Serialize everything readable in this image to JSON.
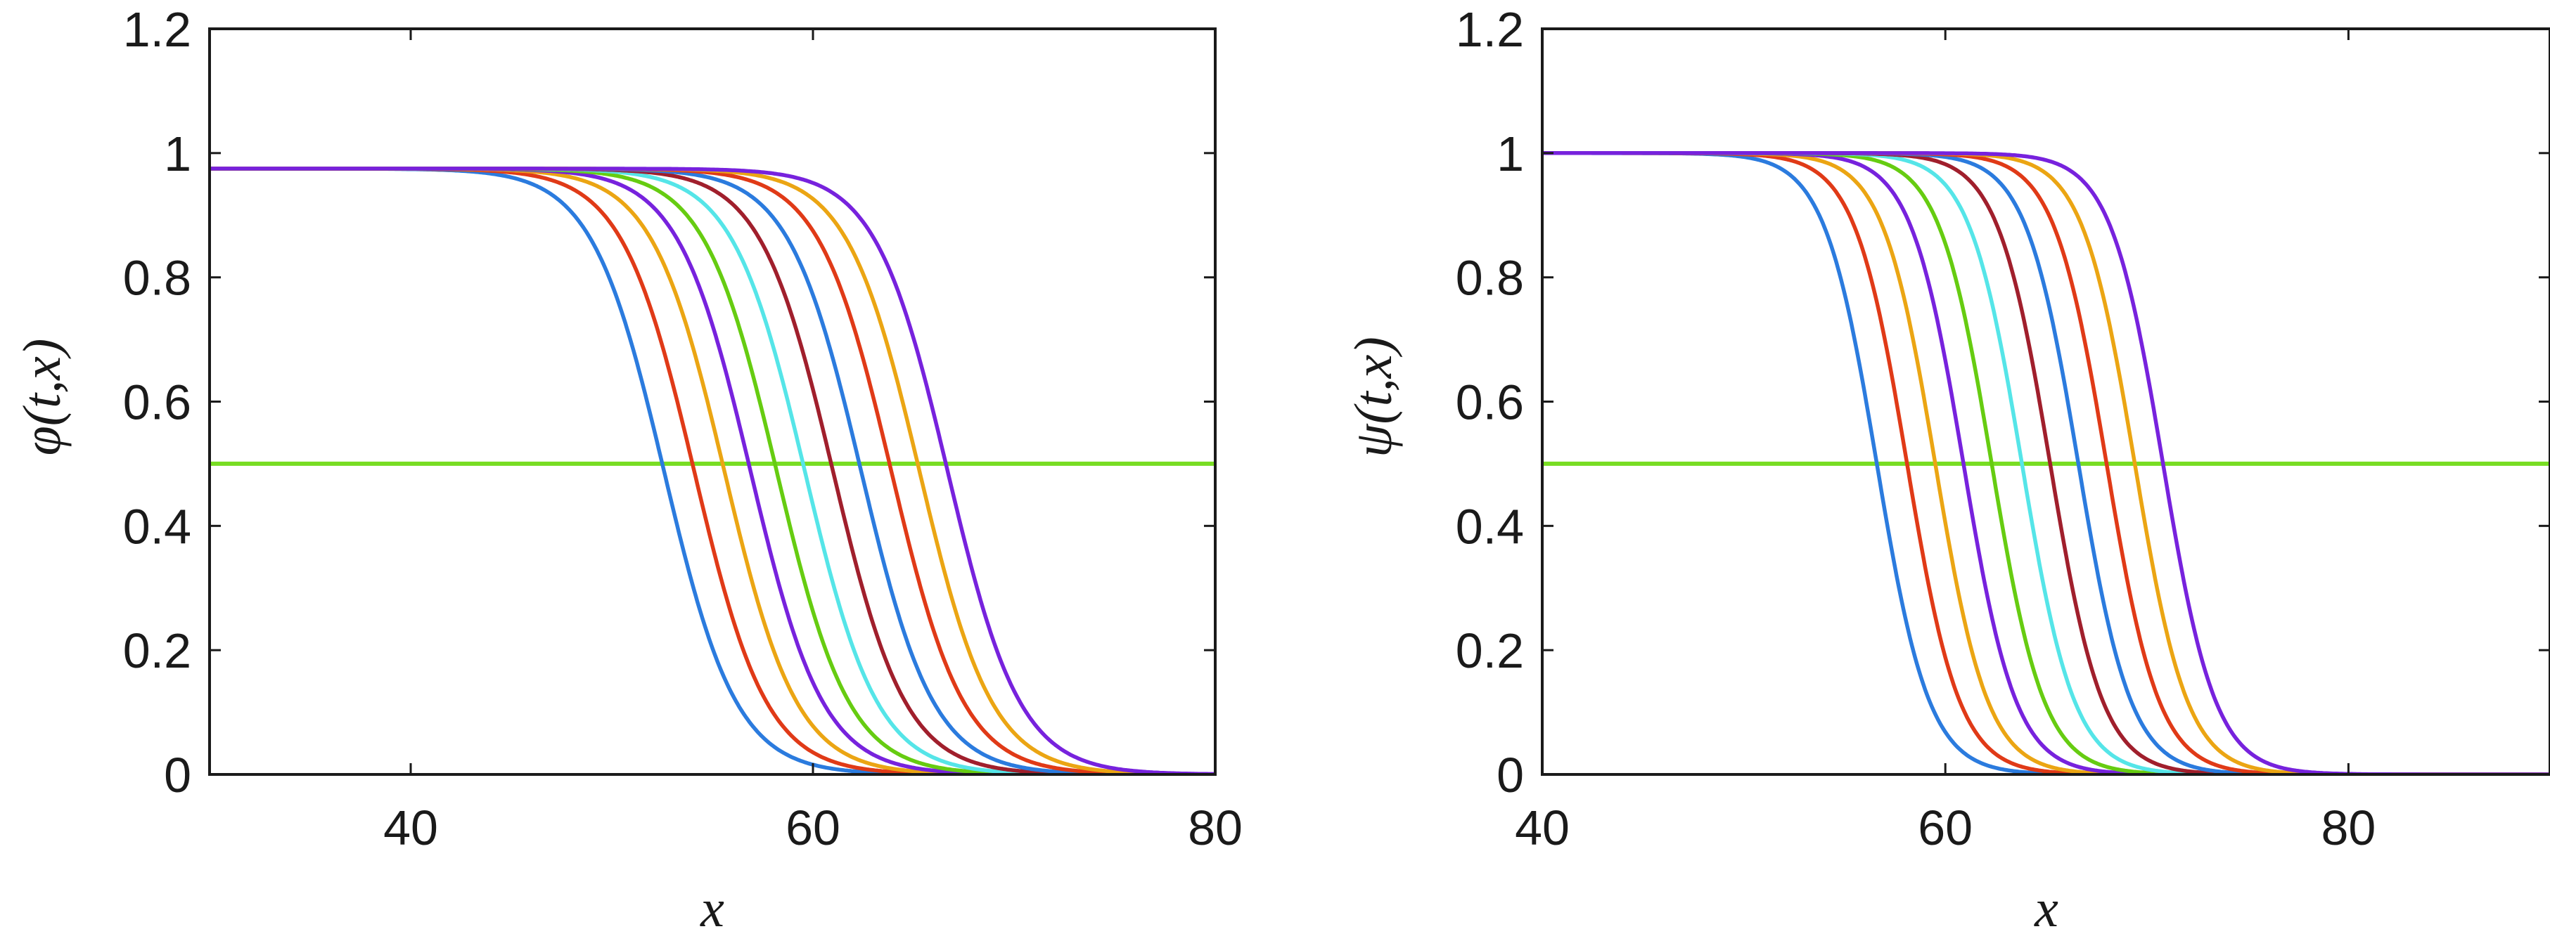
{
  "chart_data": [
    {
      "type": "line",
      "xlabel": "x",
      "ylabel": "φ(t,x)",
      "xlim": [
        30,
        80
      ],
      "ylim": [
        0,
        1.2
      ],
      "xticks": [
        40,
        60,
        80
      ],
      "yticks": [
        0,
        0.2,
        0.4,
        0.6,
        0.8,
        1,
        1.2
      ],
      "xtick_labels": [
        "40",
        "60",
        "80"
      ],
      "ytick_labels": [
        "0",
        "0.2",
        "0.4",
        "0.6",
        "0.8",
        "1",
        "1.2"
      ],
      "grid": false,
      "plateau": 0.975,
      "reference_line": {
        "y": 0.5,
        "color": "#77dd22"
      },
      "series": [
        {
          "color": "#2b7bde",
          "midpoint": 52.6,
          "width": 1.8
        },
        {
          "color": "#e03a17",
          "midpoint": 54.1,
          "width": 1.8
        },
        {
          "color": "#eba513",
          "midpoint": 55.6,
          "width": 1.8
        },
        {
          "color": "#7722dd",
          "midpoint": 56.9,
          "width": 1.8
        },
        {
          "color": "#66cc11",
          "midpoint": 58.2,
          "width": 1.8
        },
        {
          "color": "#55e5e8",
          "midpoint": 59.6,
          "width": 1.8
        },
        {
          "color": "#a01f2c",
          "midpoint": 61.0,
          "width": 1.8
        },
        {
          "color": "#2b7bde",
          "midpoint": 62.4,
          "width": 1.8
        },
        {
          "color": "#e03a17",
          "midpoint": 63.9,
          "width": 1.8
        },
        {
          "color": "#eba513",
          "midpoint": 65.3,
          "width": 1.8
        },
        {
          "color": "#7722dd",
          "midpoint": 66.7,
          "width": 1.8
        }
      ]
    },
    {
      "type": "line",
      "xlabel": "x",
      "ylabel": "ψ(t,x)",
      "xlim": [
        40,
        90
      ],
      "ylim": [
        0,
        1.2
      ],
      "xticks": [
        40,
        60,
        80
      ],
      "yticks": [
        0,
        0.2,
        0.4,
        0.6,
        0.8,
        1,
        1.2
      ],
      "xtick_labels": [
        "40",
        "60",
        "80"
      ],
      "ytick_labels": [
        "0",
        "0.2",
        "0.4",
        "0.6",
        "0.8",
        "1",
        "1.2"
      ],
      "grid": false,
      "plateau": 1.0,
      "reference_line": {
        "y": 0.5,
        "color": "#77dd22"
      },
      "series": [
        {
          "color": "#2b7bde",
          "midpoint": 56.6,
          "width": 1.3
        },
        {
          "color": "#e03a17",
          "midpoint": 58.1,
          "width": 1.3
        },
        {
          "color": "#eba513",
          "midpoint": 59.5,
          "width": 1.3
        },
        {
          "color": "#7722dd",
          "midpoint": 60.9,
          "width": 1.3
        },
        {
          "color": "#66cc11",
          "midpoint": 62.3,
          "width": 1.3
        },
        {
          "color": "#55e5e8",
          "midpoint": 63.8,
          "width": 1.3
        },
        {
          "color": "#a01f2c",
          "midpoint": 65.2,
          "width": 1.3
        },
        {
          "color": "#2b7bde",
          "midpoint": 66.6,
          "width": 1.3
        },
        {
          "color": "#e03a17",
          "midpoint": 68.0,
          "width": 1.3
        },
        {
          "color": "#eba513",
          "midpoint": 69.4,
          "width": 1.3
        },
        {
          "color": "#7722dd",
          "midpoint": 70.8,
          "width": 1.3
        }
      ]
    }
  ]
}
